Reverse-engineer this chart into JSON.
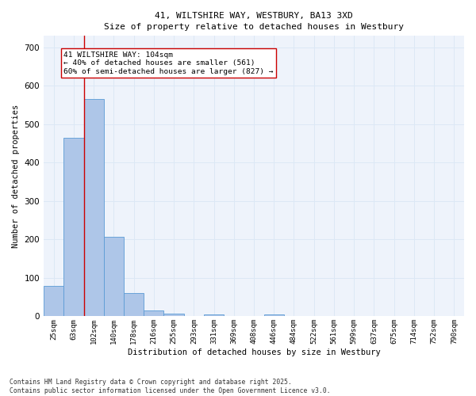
{
  "title_line1": "41, WILTSHIRE WAY, WESTBURY, BA13 3XD",
  "title_line2": "Size of property relative to detached houses in Westbury",
  "xlabel": "Distribution of detached houses by size in Westbury",
  "ylabel": "Number of detached properties",
  "bar_labels": [
    "25sqm",
    "63sqm",
    "102sqm",
    "140sqm",
    "178sqm",
    "216sqm",
    "255sqm",
    "293sqm",
    "331sqm",
    "369sqm",
    "408sqm",
    "446sqm",
    "484sqm",
    "522sqm",
    "561sqm",
    "599sqm",
    "637sqm",
    "675sqm",
    "714sqm",
    "752sqm",
    "790sqm"
  ],
  "bar_values": [
    80,
    465,
    565,
    208,
    60,
    15,
    8,
    0,
    6,
    0,
    0,
    5,
    0,
    0,
    0,
    0,
    0,
    0,
    0,
    0,
    0
  ],
  "bar_color": "#aec6e8",
  "bar_edge_color": "#5b9bd5",
  "grid_color": "#dce8f5",
  "bg_color": "#eef3fb",
  "vline_x_idx": 2,
  "vline_color": "#cc0000",
  "annotation_text": "41 WILTSHIRE WAY: 104sqm\n← 40% of detached houses are smaller (561)\n60% of semi-detached houses are larger (827) →",
  "annotation_box_color": "#ffffff",
  "annotation_box_edge": "#cc0000",
  "ylim": [
    0,
    730
  ],
  "yticks": [
    0,
    100,
    200,
    300,
    400,
    500,
    600,
    700
  ],
  "footer_line1": "Contains HM Land Registry data © Crown copyright and database right 2025.",
  "footer_line2": "Contains public sector information licensed under the Open Government Licence v3.0."
}
